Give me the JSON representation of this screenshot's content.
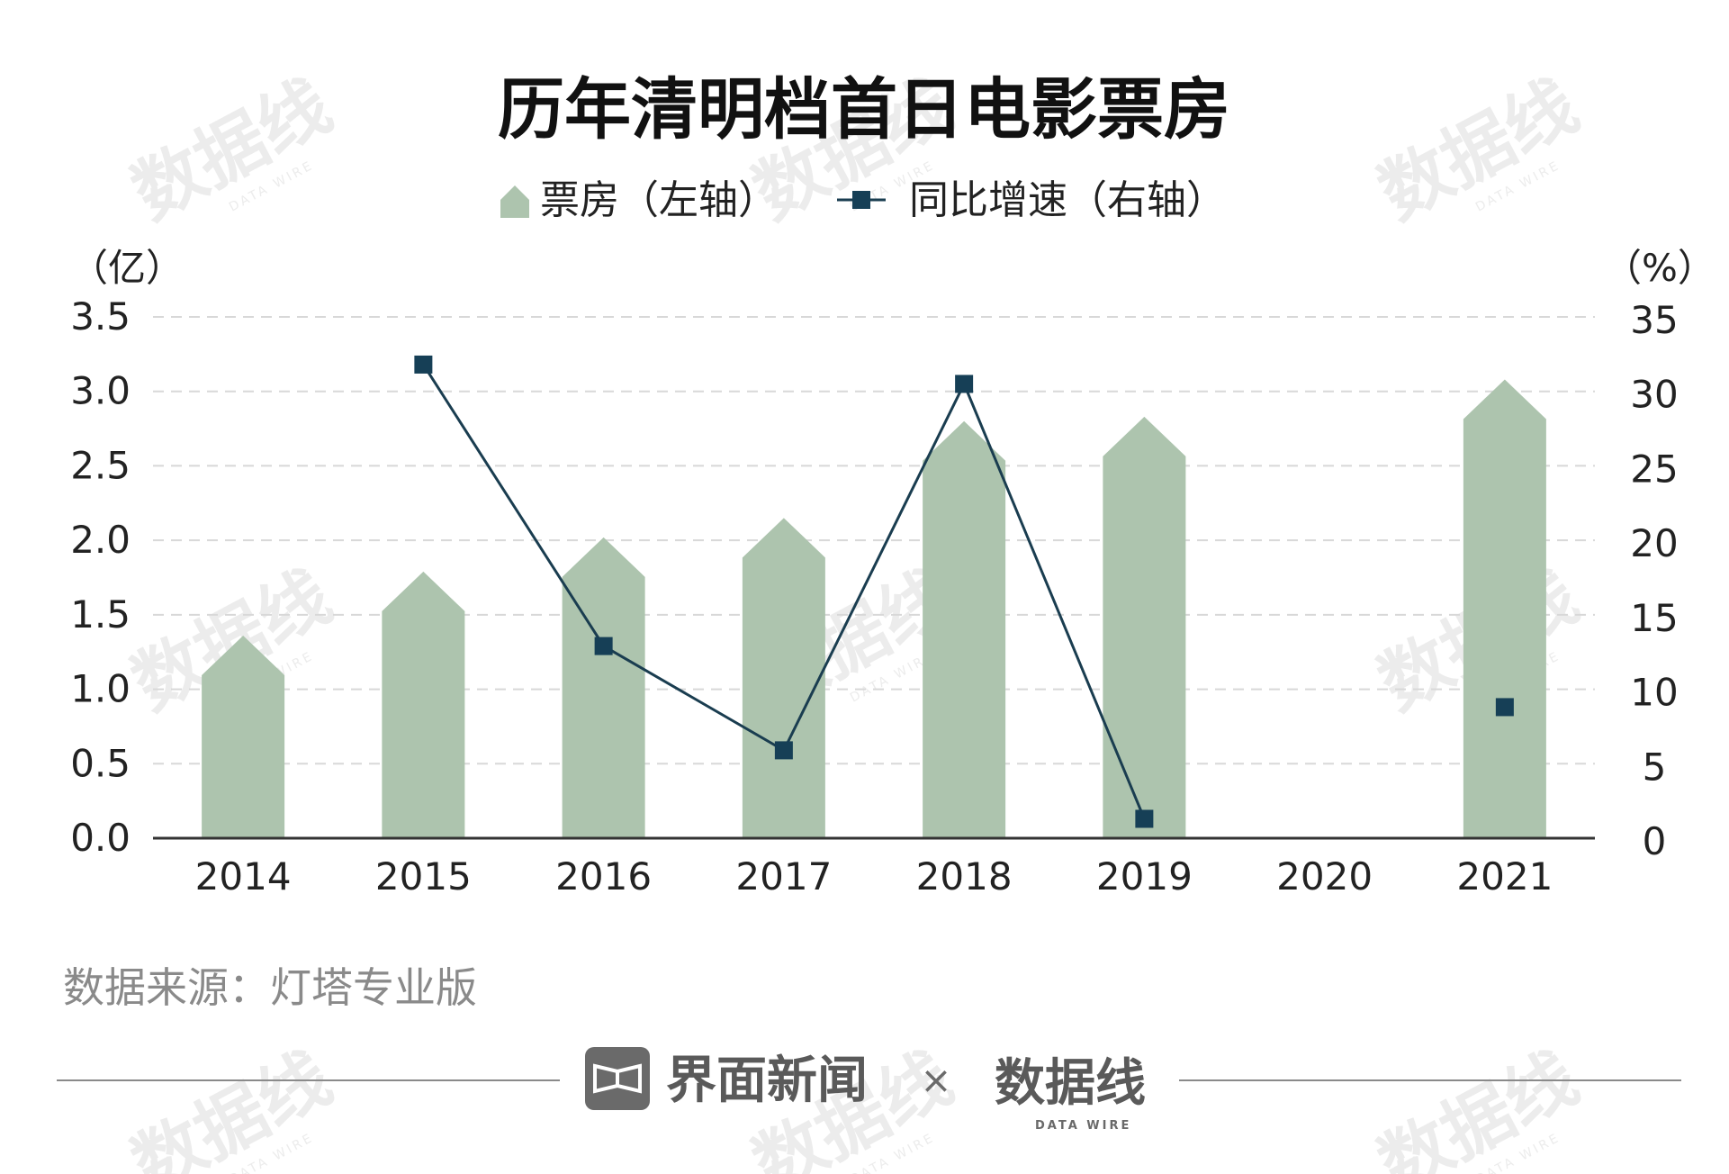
{
  "chart_data": {
    "type": "bar",
    "title": "历年清明档首日电影票房",
    "categories": [
      "2014",
      "2015",
      "2016",
      "2017",
      "2018",
      "2019",
      "2020",
      "2021"
    ],
    "series": [
      {
        "name": "票房（左轴）",
        "type": "bar",
        "axis": "left",
        "values": [
          1.36,
          1.79,
          2.02,
          2.15,
          2.8,
          2.83,
          null,
          3.08
        ]
      },
      {
        "name": "同比增速（右轴）",
        "type": "line",
        "axis": "right",
        "values": [
          null,
          31.8,
          12.9,
          5.9,
          30.5,
          1.3,
          null,
          8.8
        ]
      }
    ],
    "y_left": {
      "unit": "（亿）",
      "ylim": [
        0,
        3.5
      ],
      "ticks": [
        "0.0",
        "0.5",
        "1.0",
        "1.5",
        "2.0",
        "2.5",
        "3.0",
        "3.5"
      ]
    },
    "y_right": {
      "unit": "（%）",
      "ylim": [
        0,
        35
      ],
      "ticks": [
        "0",
        "5",
        "10",
        "15",
        "20",
        "25",
        "30",
        "35"
      ]
    },
    "grid": true,
    "legend_position": "top-center",
    "colors": {
      "bar": "#adc4ae",
      "line": "#1a3d50",
      "marker": "#163f56",
      "grid": "#d8d8d8",
      "axis": "#333333"
    }
  },
  "footer": {
    "source": "数据来源：灯塔专业版",
    "brand_left": "界面新闻",
    "separator": "×",
    "brand_right": "数据线",
    "brand_right_sub": "DATA WIRE"
  }
}
